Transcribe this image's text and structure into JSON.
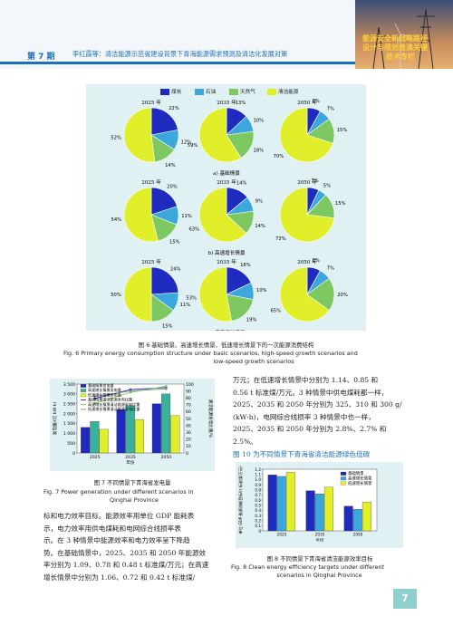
{
  "header": {
    "issue": "第 7 期",
    "running_head": "李红霞等：清洁能源示范省建设背景下青海能源需求预测及清洁化发展对策",
    "column_title": [
      "能源安全新战略路径",
      "设计与规划推演关键",
      "技术专栏"
    ]
  },
  "figure6": {
    "legend": [
      "煤炭",
      "石油",
      "天然气",
      "清洁能源"
    ],
    "colors": [
      "#1f2bbf",
      "#3ba7dc",
      "#7dc860",
      "#e1ee2a"
    ],
    "years": [
      "2025 年",
      "2035 年",
      "2050 年"
    ],
    "captions": [
      "a) 基础情景",
      "b) 高速增长情景",
      "c) 低速增长情景"
    ],
    "pies": [
      [
        {
          "values": [
            22,
            12,
            14,
            52
          ],
          "labels": [
            "22%",
            "12%",
            "14%",
            "52%"
          ]
        },
        {
          "values": [
            13,
            10,
            18,
            59
          ],
          "labels": [
            "13%",
            "10%",
            "18%",
            "59%"
          ]
        },
        {
          "values": [
            8,
            7,
            15,
            70
          ],
          "labels": [
            "8%",
            "7%",
            "15%",
            "70%"
          ]
        }
      ],
      [
        {
          "values": [
            20,
            11,
            15,
            54
          ],
          "labels": [
            "20%",
            "11%",
            "15%",
            "54%"
          ]
        },
        {
          "values": [
            14,
            9,
            14,
            63
          ],
          "labels": [
            "14%",
            "9%",
            "14%",
            "63%"
          ]
        },
        {
          "values": [
            7,
            5,
            15,
            73
          ],
          "labels": [
            "7%",
            "5%",
            "15%",
            "73%"
          ]
        }
      ],
      [
        {
          "values": [
            24,
            11,
            15,
            50
          ],
          "labels": [
            "24%",
            "11%",
            "15%",
            "50%"
          ]
        },
        {
          "values": [
            18,
            10,
            19,
            53
          ],
          "labels": [
            "18%",
            "10%",
            "19%",
            "53%"
          ]
        },
        {
          "values": [
            8,
            7,
            20,
            65
          ],
          "labels": [
            "8%",
            "7%",
            "20%",
            "65%"
          ]
        }
      ]
    ],
    "caption_cn": "图 6  基础情景、高速增长情景、低速增长情景下的一次能源消费结构",
    "caption_en_1": "Fig. 6    Primary energy consumption structure under basic scenarios, high-speed growth scenarios and",
    "caption_en_2": "low-speed growth scenarios"
  },
  "chart_data": [
    {
      "type": "bar",
      "title": "",
      "categories": [
        "2025",
        "2035",
        "2050"
      ],
      "xlabel": "年份",
      "ylabel": "发电量/(亿 kW·h)",
      "y2label": "清洁能源发电比重/%",
      "ylim": [
        0,
        3500
      ],
      "yticks": [
        "0",
        "500",
        "1 000",
        "1 500",
        "2 000",
        "2 500",
        "3 000",
        "3 500"
      ],
      "y2lim": [
        0,
        100
      ],
      "y2ticks": [
        "0",
        "10",
        "20",
        "30",
        "40",
        "50",
        "60",
        "70",
        "80",
        "90",
        "100"
      ],
      "legend": [
        "基础情景发电量",
        "高速增长情景发电量",
        "低速增长情景发电量",
        "基础情景清洁能源发电比重",
        "高速增长情景清洁能源发电比重",
        "低速增长情景清洁能源发电比重"
      ],
      "series": [
        {
          "name": "基础情景发电量",
          "values": [
            1300,
            2200,
            2500
          ],
          "color": "#1f2bbf"
        },
        {
          "name": "高速增长情景发电量",
          "values": [
            1600,
            2400,
            3000
          ],
          "color": "#3bb09a"
        },
        {
          "name": "低速增长情景发电量",
          "values": [
            1200,
            1700,
            1900
          ],
          "color": "#e1ee2a"
        }
      ],
      "lines": [
        {
          "name": "基础情景清洁能源发电比重",
          "values": [
            79,
            92,
            95
          ],
          "color": "#1f2bbf"
        },
        {
          "name": "高速增长情景清洁能源发电比重",
          "values": [
            72,
            88,
            97
          ],
          "color": "#7dc860"
        },
        {
          "name": "低速增长情景清洁能源发电比重",
          "values": [
            82,
            90,
            93
          ],
          "color": "#8a8a8a"
        }
      ]
    },
    {
      "type": "bar",
      "title": "",
      "categories": [
        "2025",
        "2035",
        "2050"
      ],
      "xlabel": "年份",
      "ylabel": "单位 GDP 能源消耗目标/(t 标准煤/万元)",
      "ylim": [
        0,
        1.2
      ],
      "yticks": [
        "0",
        "0.1",
        "0.2",
        "0.3",
        "0.4",
        "0.5",
        "0.6",
        "0.7",
        "0.8",
        "0.9",
        "1.0",
        "1.1",
        "1.2"
      ],
      "legend": [
        "基础情景",
        "高速增长情景",
        "低速增长情景"
      ],
      "series": [
        {
          "name": "基础情景",
          "values": [
            1.09,
            0.78,
            0.48
          ],
          "color": "#1f2bbf"
        },
        {
          "name": "高速增长情景",
          "values": [
            1.06,
            0.72,
            0.42
          ],
          "color": "#3ba7dc"
        },
        {
          "name": "低速增长情景",
          "values": [
            1.14,
            0.85,
            0.56
          ],
          "color": "#e1ee2a"
        }
      ]
    }
  ],
  "figure7": {
    "caption_cn": "图 7  不同情景下青海省发电量",
    "caption_en_1": "Fig. 7    Power generation under different scenarios in",
    "caption_en_2": "Qinghai Province"
  },
  "figure8": {
    "caption_cn": "图 8  不同情景下青海省清洁能源效率目标",
    "caption_en_1": "Fig. 8    Clean energy efficiency targets under different",
    "caption_en_2": "scenarios in Qinghai Province"
  },
  "right_text": [
    "万元；在低速增长情景中分别为 1.14、0.85 和",
    "0.56 t 标准煤/万元。3 种情景中供电煤耗都一样，",
    "2025、2035 和 2050 年分别为 325、310 和 300 g/",
    "(kW·h)，电网综合线损率 3 种情景中也一样，",
    "2025、2035 和 2050 年分别为 2.8%、2.7% 和",
    "2.5%。"
  ],
  "right_text_last": "图 10 为不同情景下青海省清洁能源绿色低碳",
  "left_text": [
    "标和电力效率目标。能源效率用单位 GDP 能耗表",
    "示，电力效率用供电煤耗和电网综合线损率表",
    "示。在 3 种情景中能源效率和电力效率呈下降趋",
    "势。在基础情景中，2025、2035 和 2050 年能源效",
    "率分别为 1.09、0.78 和 0.48 t 标准煤/万元；在高速",
    "增长情景中分别为 1.06、0.72 和 0.42 t 标准煤/"
  ],
  "page_number": "7"
}
